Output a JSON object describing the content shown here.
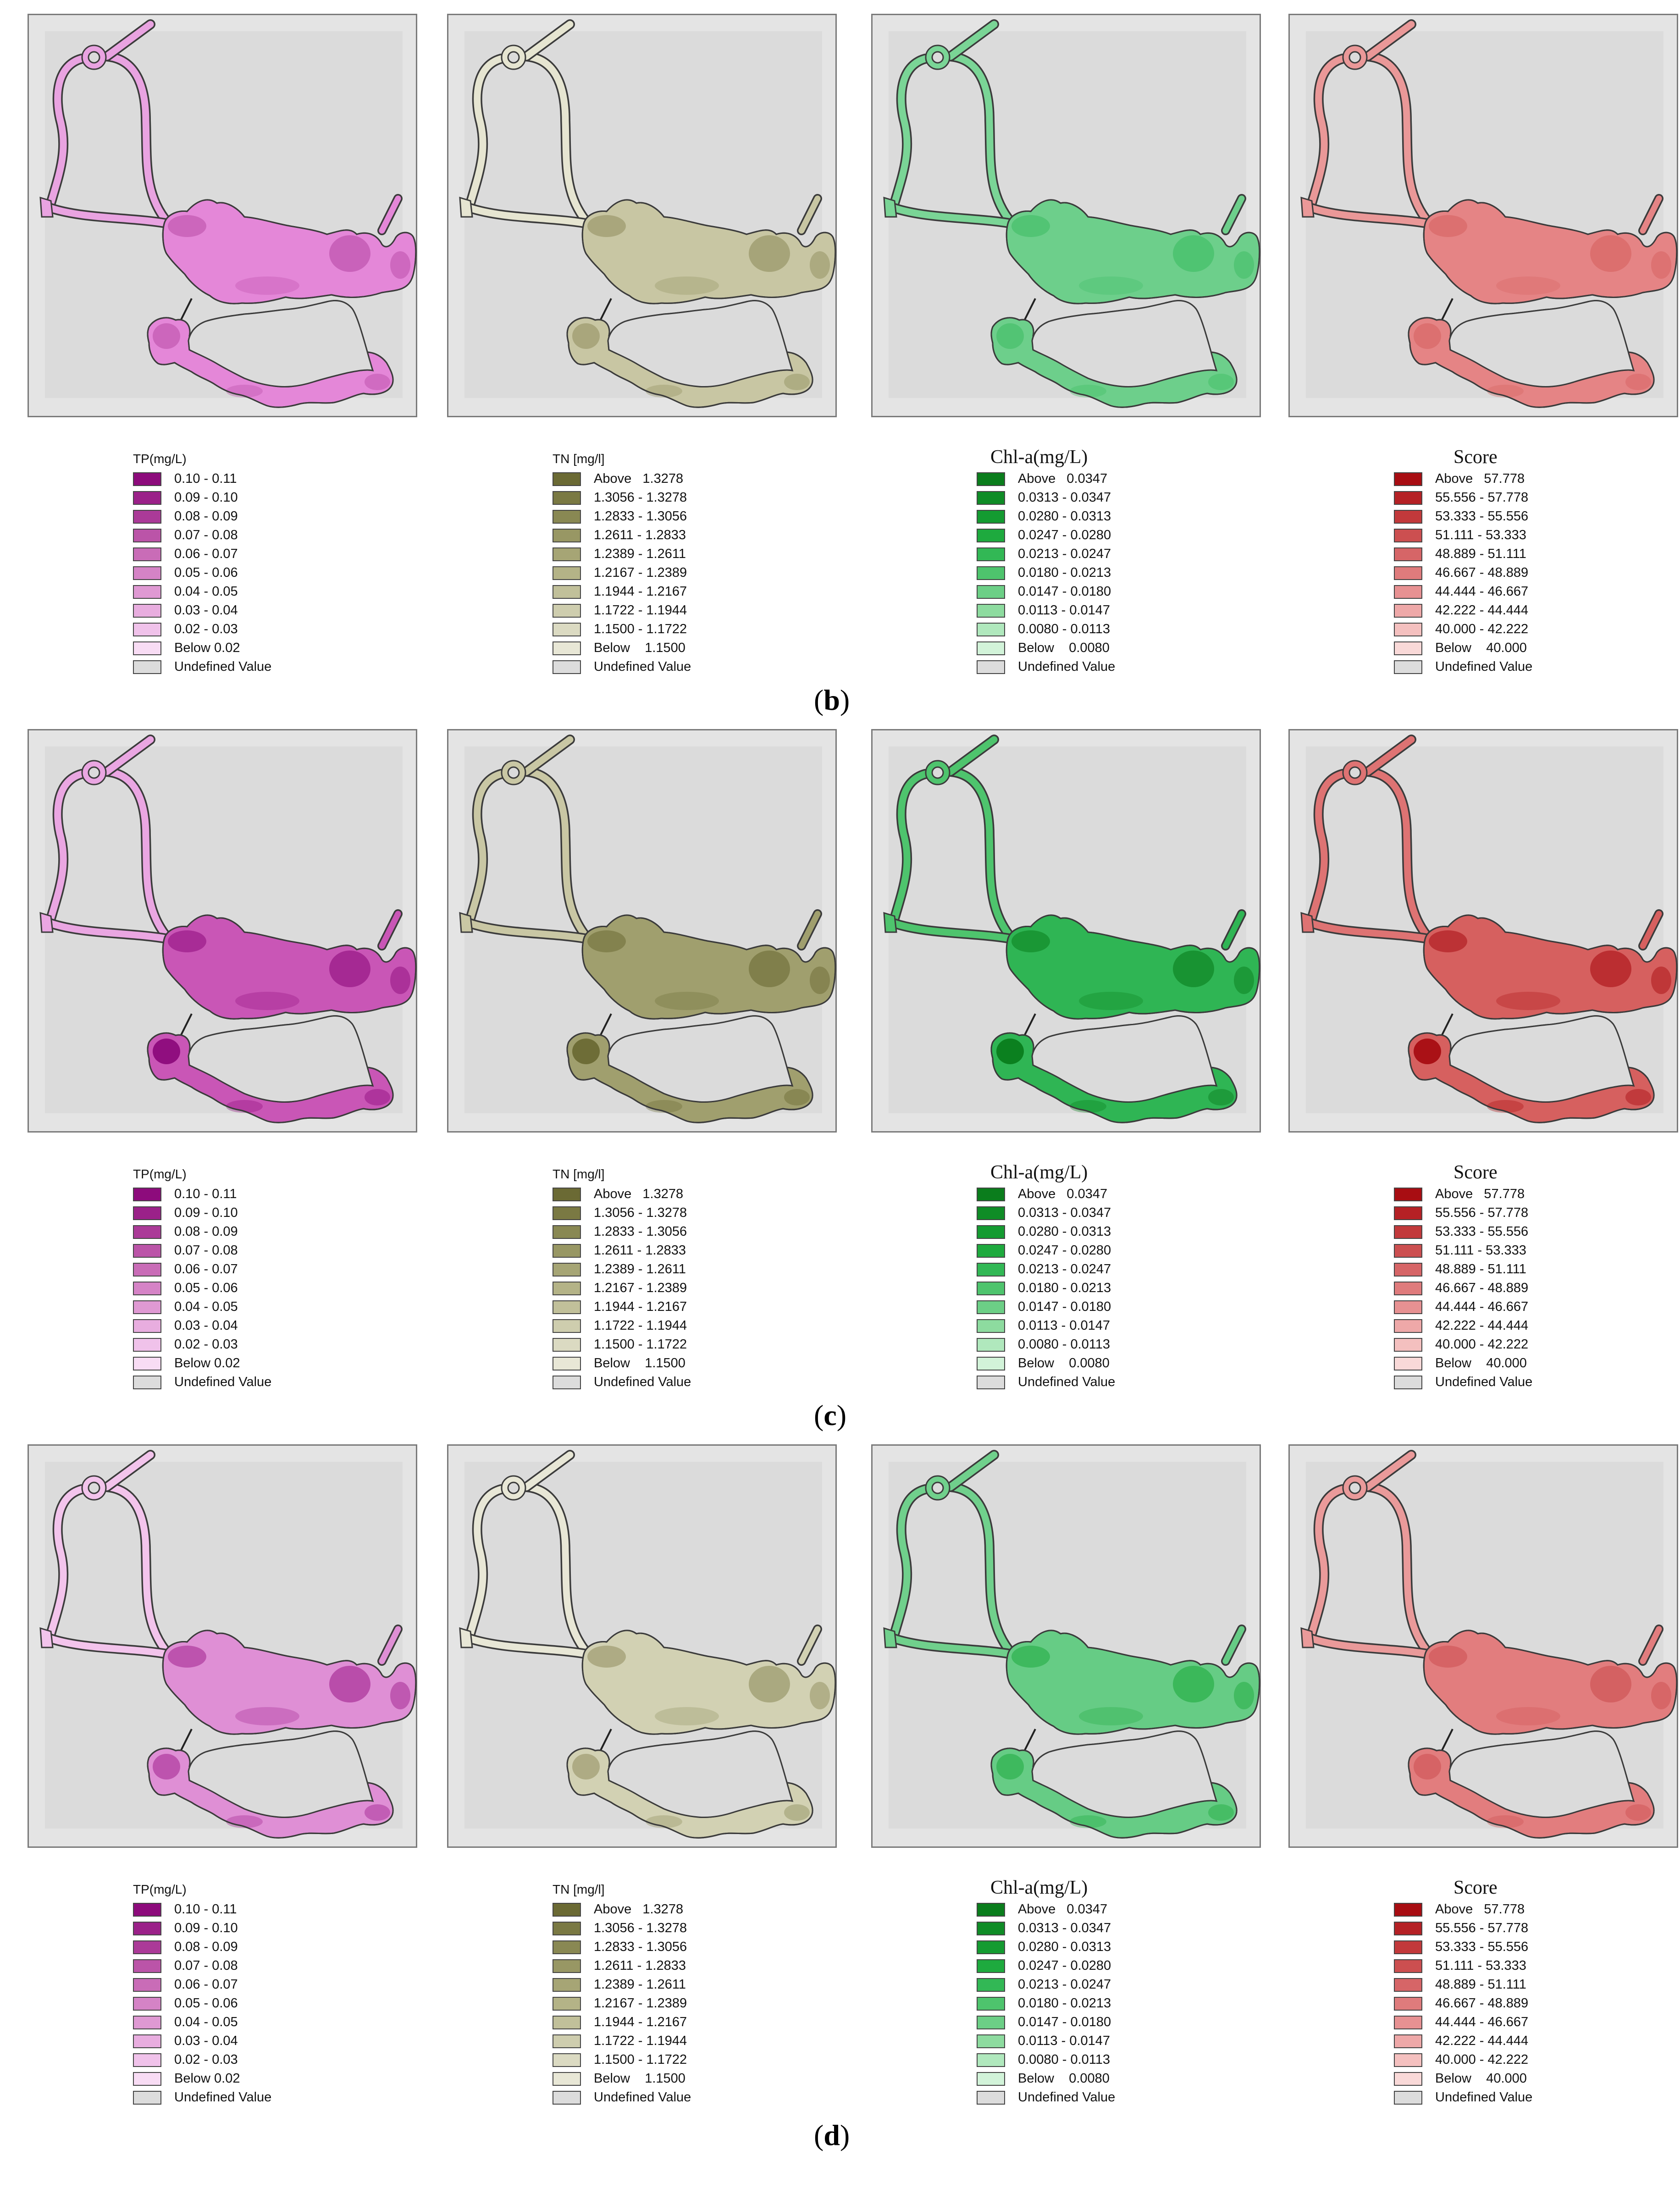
{
  "legends": {
    "tp": {
      "title": "TP(mg/L)",
      "items": [
        {
          "label": "0.10 - 0.11",
          "color": "#8d0b7c"
        },
        {
          "label": "0.09 - 0.10",
          "color": "#9b2189"
        },
        {
          "label": "0.08 - 0.09",
          "color": "#ab3a98"
        },
        {
          "label": "0.07 - 0.08",
          "color": "#bb54a8"
        },
        {
          "label": "0.06 - 0.07",
          "color": "#c96cb7"
        },
        {
          "label": "0.05 - 0.06",
          "color": "#d583c6"
        },
        {
          "label": "0.04 - 0.05",
          "color": "#df99d3"
        },
        {
          "label": "0.03 - 0.04",
          "color": "#e8addf"
        },
        {
          "label": "0.02 - 0.03",
          "color": "#f0c2ea"
        },
        {
          "label": "Below 0.02",
          "color": "#f8dcf4"
        },
        {
          "label": "Undefined Value",
          "color": "#dcdcdc"
        }
      ]
    },
    "tn": {
      "title": "TN [mg/l]",
      "items": [
        {
          "label": "Above   1.3278",
          "color": "#6b6a34"
        },
        {
          "label": "1.3056 - 1.3278",
          "color": "#7a7943"
        },
        {
          "label": "1.2833 - 1.3056",
          "color": "#898853"
        },
        {
          "label": "1.2611 - 1.2833",
          "color": "#989764"
        },
        {
          "label": "1.2389 - 1.2611",
          "color": "#a6a575"
        },
        {
          "label": "1.2167 - 1.2389",
          "color": "#b4b387"
        },
        {
          "label": "1.1944 - 1.2167",
          "color": "#c1c09a"
        },
        {
          "label": "1.1722 - 1.1944",
          "color": "#cecdae"
        },
        {
          "label": "1.1500 - 1.1722",
          "color": "#dbdac2"
        },
        {
          "label": "Below    1.1500",
          "color": "#e8e7d6"
        },
        {
          "label": "Undefined Value",
          "color": "#dcdcdc"
        }
      ]
    },
    "chla": {
      "title": "Chl-a(mg/L)",
      "items": [
        {
          "label": "Above   0.0347",
          "color": "#0a7d1c"
        },
        {
          "label": "0.0313 - 0.0347",
          "color": "#0f8c26"
        },
        {
          "label": "0.0280 - 0.0313",
          "color": "#149b31"
        },
        {
          "label": "0.0247 - 0.0280",
          "color": "#1eaa3e"
        },
        {
          "label": "0.0213 - 0.0247",
          "color": "#32b855"
        },
        {
          "label": "0.0180 - 0.0213",
          "color": "#4ec46d"
        },
        {
          "label": "0.0147 - 0.0180",
          "color": "#6ccf86"
        },
        {
          "label": "0.0113 - 0.0147",
          "color": "#8ddb9f"
        },
        {
          "label": "0.0080 - 0.0113",
          "color": "#b0e8bd"
        },
        {
          "label": "Below    0.0080",
          "color": "#d2f3d9"
        },
        {
          "label": "Undefined Value",
          "color": "#dcdcdc"
        }
      ]
    },
    "score": {
      "title": "Score",
      "items": [
        {
          "label": "Above   57.778",
          "color": "#a80d12"
        },
        {
          "label": "55.556 - 57.778",
          "color": "#b52125"
        },
        {
          "label": "53.333 - 55.556",
          "color": "#c2393b"
        },
        {
          "label": "51.111 - 53.333",
          "color": "#cc4f50"
        },
        {
          "label": "48.889 - 51.111",
          "color": "#d66567"
        },
        {
          "label": "46.667 - 48.889",
          "color": "#df7b7c"
        },
        {
          "label": "44.444 - 46.667",
          "color": "#e79192"
        },
        {
          "label": "42.222 - 44.444",
          "color": "#eea8a8"
        },
        {
          "label": "40.000 - 42.222",
          "color": "#f4c0bf"
        },
        {
          "label": "Below    40.000",
          "color": "#f9d9d8"
        },
        {
          "label": "Undefined Value",
          "color": "#dcdcdc"
        }
      ]
    }
  },
  "rows": [
    {
      "caption": "b",
      "maps": [
        {
          "variable": "TP",
          "fill": "#e487d8",
          "channel": "#e9a3e1",
          "hotspot": "#b84aa6"
        },
        {
          "variable": "TN",
          "fill": "#c8c6a3",
          "channel": "#e6e5d1",
          "hotspot": "#8f8d5d"
        },
        {
          "variable": "Chl-a",
          "fill": "#6dcf8b",
          "channel": "#7ad596",
          "hotspot": "#3cbc62"
        },
        {
          "variable": "Score",
          "fill": "#e58485",
          "channel": "#ea9898",
          "hotspot": "#d5605f"
        }
      ]
    },
    {
      "caption": "c",
      "maps": [
        {
          "variable": "TP",
          "fill": "#c956b6",
          "channel": "#eaa6e2",
          "hotspot": "#8d0b7c"
        },
        {
          "variable": "TN",
          "fill": "#a09f6e",
          "channel": "#c9c7a4",
          "hotspot": "#6b6a34"
        },
        {
          "variable": "Chl-a",
          "fill": "#2fb554",
          "channel": "#4ec46d",
          "hotspot": "#0a7d1c"
        },
        {
          "variable": "Score",
          "fill": "#d6605f",
          "channel": "#de7373",
          "hotspot": "#a80d12"
        }
      ]
    },
    {
      "caption": "d",
      "maps": [
        {
          "variable": "TP",
          "fill": "#df8fd5",
          "channel": "#f3c4ec",
          "hotspot": "#a0228e"
        },
        {
          "variable": "TN",
          "fill": "#d2d1b3",
          "channel": "#e8e7d6",
          "hotspot": "#8f8d5d"
        },
        {
          "variable": "Chl-a",
          "fill": "#66cc85",
          "channel": "#70d08c",
          "hotspot": "#1eaa3e"
        },
        {
          "variable": "Score",
          "fill": "#e27d7e",
          "channel": "#ea9a9a",
          "hotspot": "#cc4f50"
        }
      ]
    }
  ]
}
